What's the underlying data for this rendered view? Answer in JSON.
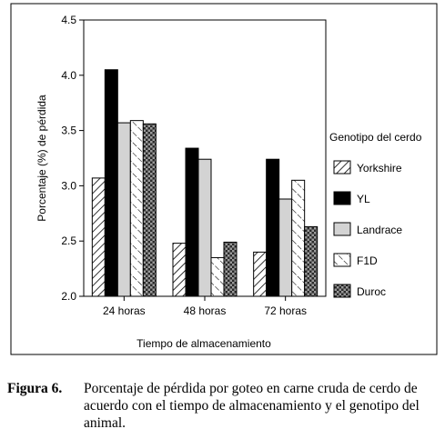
{
  "chart_data": {
    "type": "bar",
    "xlabel": "Tiempo de almacenamiento",
    "ylabel": "Porcentaje (%) de pérdida",
    "ylim": [
      2.0,
      4.5
    ],
    "yticks": [
      "2.0",
      "2.5",
      "3.0",
      "3.5",
      "4.0",
      "4.5"
    ],
    "grid": false,
    "legend_title": "Genotipo del cerdo",
    "legend_position": "right",
    "categories": [
      "24 horas",
      "48 horas",
      "72 horas"
    ],
    "series": [
      {
        "name": "Yorkshire",
        "pattern": "diagonal-hatch",
        "color": "#ffffff",
        "values": [
          3.07,
          2.48,
          2.4
        ]
      },
      {
        "name": "YL",
        "pattern": "solid",
        "color": "#000000",
        "values": [
          4.05,
          3.34,
          3.24
        ]
      },
      {
        "name": "Landrace",
        "pattern": "solid",
        "color": "#d3d3d3",
        "values": [
          3.57,
          3.24,
          2.88
        ]
      },
      {
        "name": "F1D",
        "pattern": "light-diagonal-hatch",
        "color": "#ffffff",
        "values": [
          3.59,
          2.35,
          3.05
        ]
      },
      {
        "name": "Duroc",
        "pattern": "crosshatch",
        "color": "#444444",
        "values": [
          3.56,
          2.49,
          2.63
        ]
      }
    ]
  },
  "caption": {
    "label": "Figura 6.",
    "text": "Porcentaje de pérdida por goteo en carne cruda de cerdo de acuerdo con el tiempo de almacenamiento y el genotipo del animal."
  }
}
